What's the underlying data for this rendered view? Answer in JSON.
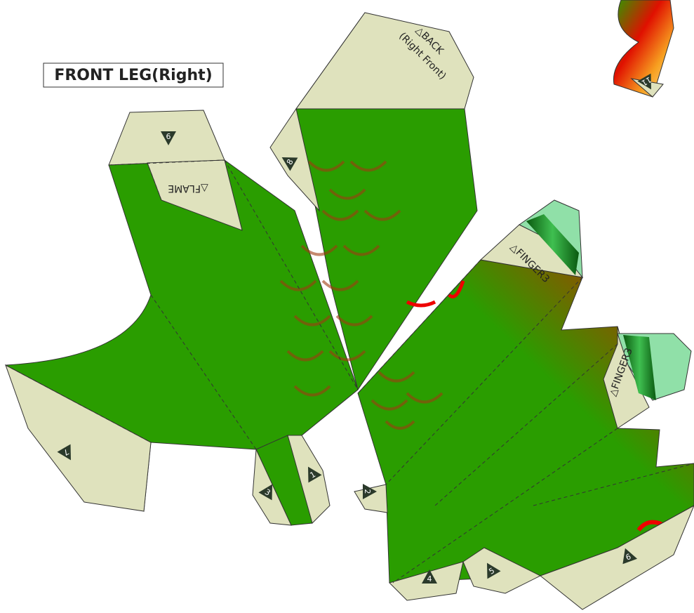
{
  "title": "FRONT LEG(Right)",
  "labels": {
    "back": "△BACK",
    "back_sub": "(Right Front)",
    "flame": "△FLAME",
    "finger_top": "△FINGER3",
    "finger_right": "△FINGER3"
  },
  "tabs": [
    "9",
    "8",
    "7",
    "3",
    "1",
    "2",
    "4",
    "5",
    "6",
    "11"
  ]
}
